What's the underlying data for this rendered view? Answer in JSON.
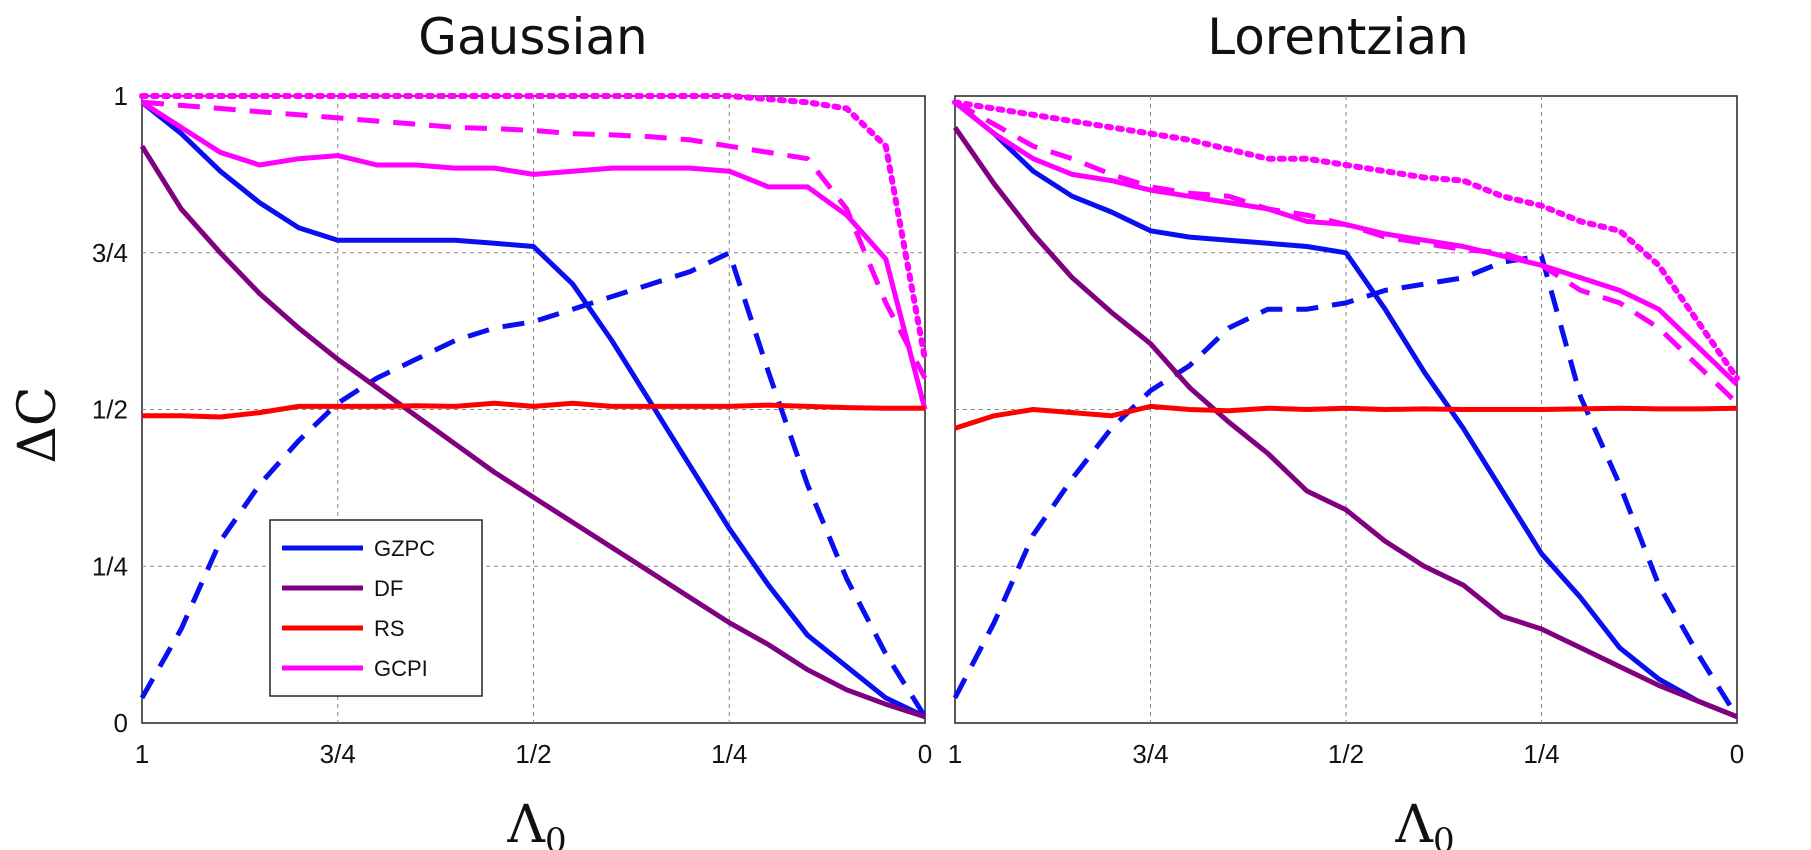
{
  "colors": {
    "GZPC": "#0a0ff0",
    "DF": "#800080",
    "RS": "#ff0000",
    "GCPI": "#ff00ff"
  },
  "legend": {
    "entries": [
      "GZPC",
      "DF",
      "RS",
      "GCPI"
    ],
    "placement": "lower-left"
  },
  "chart_data": [
    {
      "type": "line",
      "title": "Gaussian",
      "xlabel": "Λ0",
      "ylabel": "ΔC",
      "xlim": [
        1,
        0
      ],
      "ylim": [
        0,
        1
      ],
      "xticks": [
        1,
        0.75,
        0.5,
        0.25,
        0
      ],
      "xtick_labels": [
        "1",
        "3/4",
        "1/2",
        "1/4",
        "0"
      ],
      "yticks": [
        0,
        0.25,
        0.5,
        0.75,
        1
      ],
      "ytick_labels": [
        "0",
        "1/4",
        "1/2",
        "3/4",
        "1"
      ],
      "grid": true,
      "series": [
        {
          "name": "GZPC",
          "style": "solid",
          "x": [
            1.0,
            0.95,
            0.9,
            0.85,
            0.8,
            0.75,
            0.7,
            0.65,
            0.6,
            0.55,
            0.5,
            0.45,
            0.4,
            0.35,
            0.3,
            0.25,
            0.2,
            0.15,
            0.1,
            0.05,
            0.0
          ],
          "y": [
            0.99,
            0.94,
            0.88,
            0.83,
            0.79,
            0.77,
            0.77,
            0.77,
            0.77,
            0.765,
            0.76,
            0.7,
            0.61,
            0.51,
            0.41,
            0.31,
            0.22,
            0.14,
            0.09,
            0.04,
            0.01
          ]
        },
        {
          "name": "GZPC",
          "style": "dashed",
          "x": [
            1.0,
            0.95,
            0.9,
            0.85,
            0.8,
            0.75,
            0.7,
            0.65,
            0.6,
            0.55,
            0.5,
            0.45,
            0.4,
            0.35,
            0.3,
            0.25,
            0.2,
            0.15,
            0.1,
            0.05,
            0.0
          ],
          "y": [
            0.04,
            0.15,
            0.29,
            0.38,
            0.45,
            0.51,
            0.55,
            0.58,
            0.61,
            0.63,
            0.64,
            0.66,
            0.68,
            0.7,
            0.72,
            0.75,
            0.56,
            0.38,
            0.23,
            0.11,
            0.01
          ]
        },
        {
          "name": "GCPI",
          "style": "solid",
          "x": [
            1.0,
            0.95,
            0.9,
            0.85,
            0.8,
            0.75,
            0.7,
            0.65,
            0.6,
            0.55,
            0.5,
            0.45,
            0.4,
            0.35,
            0.3,
            0.25,
            0.2,
            0.15,
            0.1,
            0.05,
            0.0
          ],
          "y": [
            0.99,
            0.95,
            0.91,
            0.89,
            0.9,
            0.905,
            0.89,
            0.89,
            0.885,
            0.885,
            0.875,
            0.88,
            0.885,
            0.885,
            0.885,
            0.88,
            0.855,
            0.855,
            0.81,
            0.74,
            0.5
          ]
        },
        {
          "name": "GCPI",
          "style": "dashed",
          "x": [
            1.0,
            0.95,
            0.9,
            0.85,
            0.8,
            0.75,
            0.7,
            0.65,
            0.6,
            0.55,
            0.5,
            0.45,
            0.4,
            0.35,
            0.3,
            0.25,
            0.2,
            0.15,
            0.1,
            0.05,
            0.0
          ],
          "y": [
            0.99,
            0.985,
            0.98,
            0.975,
            0.97,
            0.965,
            0.96,
            0.955,
            0.95,
            0.948,
            0.945,
            0.94,
            0.938,
            0.935,
            0.93,
            0.92,
            0.91,
            0.9,
            0.82,
            0.67,
            0.55
          ]
        },
        {
          "name": "GCPI",
          "style": "dotted",
          "x": [
            1.0,
            0.95,
            0.9,
            0.85,
            0.8,
            0.75,
            0.7,
            0.65,
            0.6,
            0.55,
            0.5,
            0.45,
            0.4,
            0.35,
            0.3,
            0.25,
            0.2,
            0.15,
            0.1,
            0.05,
            0.0
          ],
          "y": [
            1.0,
            1.0,
            1.0,
            1.0,
            1.0,
            1.0,
            1.0,
            1.0,
            1.0,
            1.0,
            1.0,
            1.0,
            1.0,
            1.0,
            1.0,
            1.0,
            0.995,
            0.99,
            0.98,
            0.92,
            0.58
          ]
        },
        {
          "name": "DF",
          "style": "solid",
          "x": [
            1.0,
            0.95,
            0.9,
            0.85,
            0.8,
            0.75,
            0.7,
            0.65,
            0.6,
            0.55,
            0.5,
            0.45,
            0.4,
            0.35,
            0.3,
            0.25,
            0.2,
            0.15,
            0.1,
            0.05,
            0.0
          ],
          "y": [
            0.92,
            0.82,
            0.75,
            0.685,
            0.63,
            0.58,
            0.535,
            0.49,
            0.445,
            0.4,
            0.36,
            0.32,
            0.28,
            0.24,
            0.2,
            0.16,
            0.125,
            0.085,
            0.053,
            0.03,
            0.01
          ]
        },
        {
          "name": "RS",
          "style": "solid",
          "x": [
            1.0,
            0.95,
            0.9,
            0.85,
            0.8,
            0.75,
            0.7,
            0.65,
            0.6,
            0.55,
            0.5,
            0.45,
            0.4,
            0.35,
            0.3,
            0.25,
            0.2,
            0.15,
            0.1,
            0.05,
            0.0
          ],
          "y": [
            0.49,
            0.49,
            0.488,
            0.495,
            0.505,
            0.505,
            0.505,
            0.506,
            0.505,
            0.51,
            0.505,
            0.51,
            0.505,
            0.505,
            0.505,
            0.505,
            0.507,
            0.505,
            0.503,
            0.502,
            0.502
          ]
        }
      ]
    },
    {
      "type": "line",
      "title": "Lorentzian",
      "xlabel": "Λ0",
      "ylabel": "ΔC",
      "xlim": [
        1,
        0
      ],
      "ylim": [
        0,
        1
      ],
      "xticks": [
        1,
        0.75,
        0.5,
        0.25,
        0
      ],
      "xtick_labels": [
        "1",
        "3/4",
        "1/2",
        "1/4",
        "0"
      ],
      "yticks": [
        0,
        0.25,
        0.5,
        0.75,
        1
      ],
      "ytick_labels": [
        "0",
        "1/4",
        "1/2",
        "3/4",
        "1"
      ],
      "grid": true,
      "series": [
        {
          "name": "GZPC",
          "style": "solid",
          "x": [
            1.0,
            0.95,
            0.9,
            0.85,
            0.8,
            0.75,
            0.7,
            0.65,
            0.6,
            0.55,
            0.5,
            0.45,
            0.4,
            0.35,
            0.3,
            0.25,
            0.2,
            0.15,
            0.1,
            0.05,
            0.0
          ],
          "y": [
            0.99,
            0.94,
            0.88,
            0.84,
            0.815,
            0.785,
            0.775,
            0.77,
            0.765,
            0.76,
            0.75,
            0.66,
            0.56,
            0.47,
            0.37,
            0.27,
            0.2,
            0.12,
            0.07,
            0.035,
            0.01
          ]
        },
        {
          "name": "GZPC",
          "style": "dashed",
          "x": [
            1.0,
            0.95,
            0.9,
            0.85,
            0.8,
            0.75,
            0.7,
            0.65,
            0.6,
            0.55,
            0.5,
            0.45,
            0.4,
            0.35,
            0.3,
            0.25,
            0.2,
            0.15,
            0.1,
            0.05,
            0.0
          ],
          "y": [
            0.04,
            0.16,
            0.3,
            0.39,
            0.47,
            0.53,
            0.57,
            0.63,
            0.66,
            0.66,
            0.67,
            0.69,
            0.7,
            0.71,
            0.735,
            0.745,
            0.52,
            0.38,
            0.22,
            0.11,
            0.01
          ]
        },
        {
          "name": "GCPI",
          "style": "solid",
          "x": [
            1.0,
            0.95,
            0.9,
            0.85,
            0.8,
            0.75,
            0.7,
            0.65,
            0.6,
            0.55,
            0.5,
            0.45,
            0.4,
            0.35,
            0.3,
            0.25,
            0.2,
            0.15,
            0.1,
            0.05,
            0.0
          ],
          "y": [
            0.99,
            0.94,
            0.9,
            0.875,
            0.865,
            0.85,
            0.84,
            0.83,
            0.82,
            0.8,
            0.795,
            0.78,
            0.77,
            0.76,
            0.745,
            0.73,
            0.71,
            0.69,
            0.66,
            0.6,
            0.54
          ]
        },
        {
          "name": "GCPI",
          "style": "dashed",
          "x": [
            1.0,
            0.95,
            0.9,
            0.85,
            0.8,
            0.75,
            0.7,
            0.65,
            0.6,
            0.55,
            0.5,
            0.45,
            0.4,
            0.35,
            0.3,
            0.25,
            0.2,
            0.15,
            0.1,
            0.05,
            0.0
          ],
          "y": [
            0.99,
            0.955,
            0.92,
            0.9,
            0.875,
            0.855,
            0.845,
            0.84,
            0.82,
            0.81,
            0.795,
            0.775,
            0.765,
            0.755,
            0.75,
            0.73,
            0.69,
            0.67,
            0.63,
            0.57,
            0.51
          ]
        },
        {
          "name": "GCPI",
          "style": "dotted",
          "x": [
            1.0,
            0.95,
            0.9,
            0.85,
            0.8,
            0.75,
            0.7,
            0.65,
            0.6,
            0.55,
            0.5,
            0.45,
            0.4,
            0.35,
            0.3,
            0.25,
            0.2,
            0.15,
            0.1,
            0.05,
            0.0
          ],
          "y": [
            0.99,
            0.98,
            0.97,
            0.96,
            0.95,
            0.94,
            0.93,
            0.915,
            0.9,
            0.9,
            0.89,
            0.88,
            0.87,
            0.865,
            0.84,
            0.825,
            0.8,
            0.785,
            0.73,
            0.64,
            0.55
          ]
        },
        {
          "name": "DF",
          "style": "solid",
          "x": [
            1.0,
            0.95,
            0.9,
            0.85,
            0.8,
            0.75,
            0.7,
            0.65,
            0.6,
            0.55,
            0.5,
            0.45,
            0.4,
            0.35,
            0.3,
            0.25,
            0.2,
            0.15,
            0.1,
            0.05,
            0.0
          ],
          "y": [
            0.95,
            0.86,
            0.78,
            0.71,
            0.655,
            0.605,
            0.535,
            0.48,
            0.43,
            0.37,
            0.34,
            0.29,
            0.25,
            0.22,
            0.17,
            0.15,
            0.12,
            0.09,
            0.06,
            0.035,
            0.01
          ]
        },
        {
          "name": "RS",
          "style": "solid",
          "x": [
            1.0,
            0.95,
            0.9,
            0.85,
            0.8,
            0.75,
            0.7,
            0.65,
            0.6,
            0.55,
            0.5,
            0.45,
            0.4,
            0.35,
            0.3,
            0.25,
            0.2,
            0.15,
            0.1,
            0.05,
            0.0
          ],
          "y": [
            0.47,
            0.49,
            0.5,
            0.495,
            0.49,
            0.505,
            0.5,
            0.498,
            0.502,
            0.5,
            0.502,
            0.5,
            0.501,
            0.5,
            0.5,
            0.5,
            0.501,
            0.502,
            0.501,
            0.501,
            0.502
          ]
        }
      ]
    }
  ]
}
